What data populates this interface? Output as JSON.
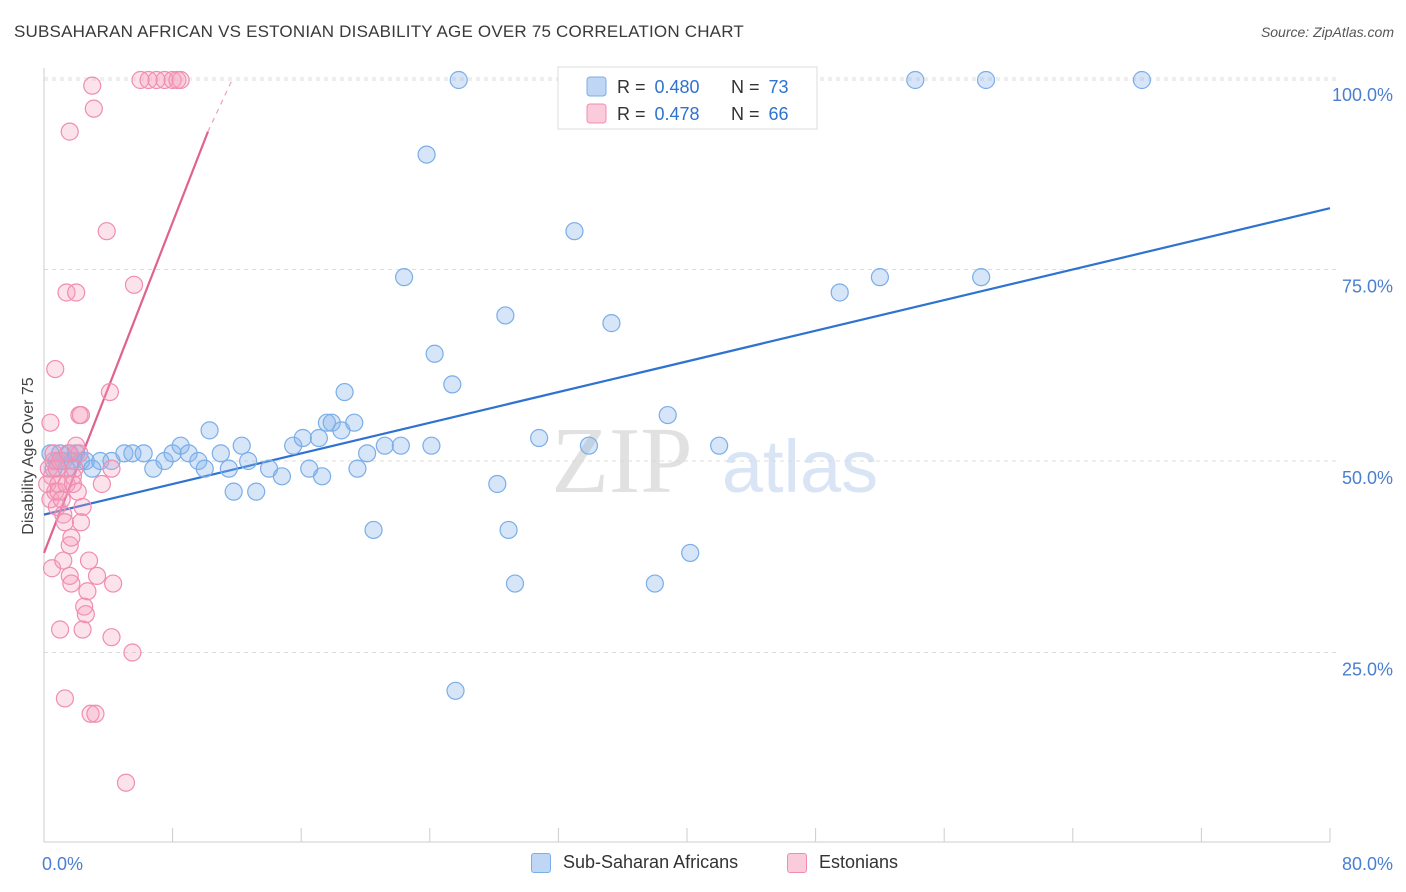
{
  "title": "SUBSAHARAN AFRICAN VS ESTONIAN DISABILITY AGE OVER 75 CORRELATION CHART",
  "source": "Source: ZipAtlas.com",
  "watermark": {
    "zip": "ZIP",
    "atlas": "atlas"
  },
  "chart_data": {
    "type": "scatter",
    "ylabel": "Disability Age Over 75",
    "xlim": [
      0,
      80
    ],
    "ylim": [
      0,
      105
    ],
    "x_tick_labels": [
      "0.0%",
      "80.0%"
    ],
    "y_ticks": [
      25,
      50,
      75,
      100
    ],
    "y_tick_labels": [
      "25.0%",
      "50.0%",
      "75.0%",
      "100.0%"
    ],
    "grid": true,
    "legend_position": "top-center",
    "legend": [
      {
        "r_label": "R = ",
        "r_value": "0.480",
        "n_label": "N = ",
        "n_value": "73"
      },
      {
        "r_label": "R = ",
        "r_value": "0.478",
        "n_label": "N = ",
        "n_value": "66"
      }
    ],
    "series": [
      {
        "name": "Sub-Saharan Africans",
        "color": "#7aaee8",
        "fill": "rgba(138,180,236,0.35)",
        "line_color": "#2f72d0",
        "trend": {
          "x": [
            0,
            80
          ],
          "y": [
            43,
            83
          ]
        },
        "points": [
          [
            0.4,
            51
          ],
          [
            0.6,
            49
          ],
          [
            0.8,
            50
          ],
          [
            1.0,
            51
          ],
          [
            1.2,
            50
          ],
          [
            1.4,
            49
          ],
          [
            1.6,
            51
          ],
          [
            1.8,
            50
          ],
          [
            2.0,
            51
          ],
          [
            2.3,
            50
          ],
          [
            2.6,
            50
          ],
          [
            3.0,
            49
          ],
          [
            3.5,
            50
          ],
          [
            4.2,
            50
          ],
          [
            5.0,
            51
          ],
          [
            5.5,
            51
          ],
          [
            6.2,
            51
          ],
          [
            6.8,
            49
          ],
          [
            7.5,
            50
          ],
          [
            8.0,
            51
          ],
          [
            8.5,
            52
          ],
          [
            9.0,
            51
          ],
          [
            9.6,
            50
          ],
          [
            10.0,
            49
          ],
          [
            10.3,
            54
          ],
          [
            11.0,
            51
          ],
          [
            11.5,
            49
          ],
          [
            11.8,
            46
          ],
          [
            12.3,
            52
          ],
          [
            12.7,
            50
          ],
          [
            13.2,
            46
          ],
          [
            14.0,
            49
          ],
          [
            14.8,
            48
          ],
          [
            15.5,
            52
          ],
          [
            16.1,
            53
          ],
          [
            16.5,
            49
          ],
          [
            17.1,
            53
          ],
          [
            17.3,
            48
          ],
          [
            17.6,
            55
          ],
          [
            17.9,
            55
          ],
          [
            18.5,
            54
          ],
          [
            18.7,
            59
          ],
          [
            19.3,
            55
          ],
          [
            19.5,
            49
          ],
          [
            20.1,
            51
          ],
          [
            20.5,
            41
          ],
          [
            21.2,
            52
          ],
          [
            22.2,
            52
          ],
          [
            22.4,
            74
          ],
          [
            23.8,
            90
          ],
          [
            24.1,
            52
          ],
          [
            24.3,
            64
          ],
          [
            25.4,
            60
          ],
          [
            25.6,
            20
          ],
          [
            25.8,
            103
          ],
          [
            28.2,
            47
          ],
          [
            28.7,
            69
          ],
          [
            28.9,
            41
          ],
          [
            29.3,
            34
          ],
          [
            30.8,
            53
          ],
          [
            33.0,
            80
          ],
          [
            33.9,
            52
          ],
          [
            35.3,
            68
          ],
          [
            38.0,
            34
          ],
          [
            38.8,
            56
          ],
          [
            40.2,
            38
          ],
          [
            42.0,
            52
          ],
          [
            49.5,
            72
          ],
          [
            52.0,
            74
          ],
          [
            54.2,
            103
          ],
          [
            58.3,
            74
          ],
          [
            58.6,
            103
          ],
          [
            68.3,
            103
          ]
        ]
      },
      {
        "name": "Estonians",
        "color": "#f08db0",
        "fill": "rgba(245,160,190,0.30)",
        "line_color": "#e0628f",
        "trend": {
          "x": [
            0,
            10.2
          ],
          "y": [
            38,
            93
          ]
        },
        "trend_dashed": {
          "x": [
            10.2,
            11.7
          ],
          "y": [
            93,
            103
          ]
        },
        "points": [
          [
            0.2,
            47
          ],
          [
            0.3,
            49
          ],
          [
            0.4,
            45
          ],
          [
            0.5,
            48
          ],
          [
            0.6,
            50
          ],
          [
            0.7,
            46
          ],
          [
            0.8,
            44
          ],
          [
            0.9,
            46
          ],
          [
            0.4,
            55
          ],
          [
            0.6,
            51
          ],
          [
            0.8,
            49
          ],
          [
            0.9,
            47
          ],
          [
            1.0,
            50
          ],
          [
            1.1,
            45
          ],
          [
            1.2,
            43
          ],
          [
            1.3,
            42
          ],
          [
            1.4,
            47
          ],
          [
            1.5,
            51
          ],
          [
            1.6,
            39
          ],
          [
            1.6,
            35
          ],
          [
            1.7,
            40
          ],
          [
            1.8,
            48
          ],
          [
            2.0,
            52
          ],
          [
            2.1,
            46
          ],
          [
            2.2,
            51
          ],
          [
            2.4,
            44
          ],
          [
            0.5,
            36
          ],
          [
            0.7,
            62
          ],
          [
            1.0,
            28
          ],
          [
            1.2,
            37
          ],
          [
            1.3,
            19
          ],
          [
            1.4,
            72
          ],
          [
            1.6,
            93
          ],
          [
            1.7,
            34
          ],
          [
            1.8,
            47
          ],
          [
            1.9,
            49
          ],
          [
            2.0,
            72
          ],
          [
            2.2,
            56
          ],
          [
            2.3,
            56
          ],
          [
            2.3,
            42
          ],
          [
            2.4,
            28
          ],
          [
            2.5,
            31
          ],
          [
            2.6,
            30
          ],
          [
            2.7,
            33
          ],
          [
            2.8,
            37
          ],
          [
            2.9,
            17
          ],
          [
            3.0,
            99
          ],
          [
            3.1,
            96
          ],
          [
            3.2,
            17
          ],
          [
            3.3,
            35
          ],
          [
            3.6,
            47
          ],
          [
            3.9,
            80
          ],
          [
            4.1,
            59
          ],
          [
            4.2,
            49
          ],
          [
            4.2,
            27
          ],
          [
            4.3,
            34
          ],
          [
            5.1,
            8
          ],
          [
            5.5,
            25
          ],
          [
            5.6,
            73
          ],
          [
            6.0,
            105
          ],
          [
            6.5,
            105
          ],
          [
            7.0,
            105
          ],
          [
            7.5,
            105
          ],
          [
            8.0,
            105
          ],
          [
            8.3,
            105
          ],
          [
            8.5,
            105
          ]
        ]
      }
    ]
  }
}
